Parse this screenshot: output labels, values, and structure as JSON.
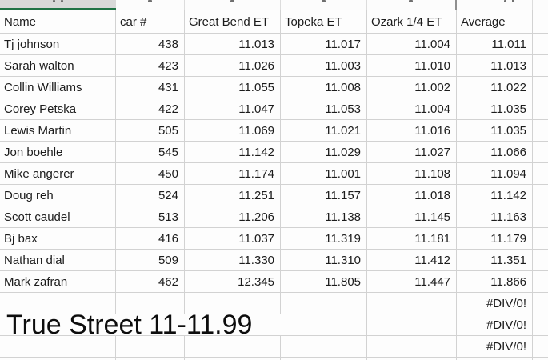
{
  "table": {
    "columns": [
      "Name",
      "car #",
      "Great Bend ET",
      "Topeka ET",
      "Ozark 1/4 ET",
      "Average"
    ],
    "rows": [
      {
        "name": "Tj johnson",
        "car": "438",
        "great_bend": "11.013",
        "topeka": "11.017",
        "ozark": "11.004",
        "average": "11.011"
      },
      {
        "name": "Sarah walton",
        "car": "423",
        "great_bend": "11.026",
        "topeka": "11.003",
        "ozark": "11.010",
        "average": "11.013"
      },
      {
        "name": "Collin Williams",
        "car": "431",
        "great_bend": "11.055",
        "topeka": "11.008",
        "ozark": "11.002",
        "average": "11.022"
      },
      {
        "name": "Corey Petska",
        "car": "422",
        "great_bend": "11.047",
        "topeka": "11.053",
        "ozark": "11.004",
        "average": "11.035"
      },
      {
        "name": "Lewis Martin",
        "car": "505",
        "great_bend": "11.069",
        "topeka": "11.021",
        "ozark": "11.016",
        "average": "11.035"
      },
      {
        "name": "Jon boehle",
        "car": "545",
        "great_bend": "11.142",
        "topeka": "11.029",
        "ozark": "11.027",
        "average": "11.066"
      },
      {
        "name": "Mike angerer",
        "car": "450",
        "great_bend": "11.174",
        "topeka": "11.001",
        "ozark": "11.108",
        "average": "11.094"
      },
      {
        "name": "Doug reh",
        "car": "524",
        "great_bend": "11.251",
        "topeka": "11.157",
        "ozark": "11.018",
        "average": "11.142"
      },
      {
        "name": "Scott caudel",
        "car": "513",
        "great_bend": "11.206",
        "topeka": "11.138",
        "ozark": "11.145",
        "average": "11.163"
      },
      {
        "name": "Bj bax",
        "car": "416",
        "great_bend": "11.037",
        "topeka": "11.319",
        "ozark": "11.181",
        "average": "11.179"
      },
      {
        "name": "Nathan dial",
        "car": "509",
        "great_bend": "11.330",
        "topeka": "11.310",
        "ozark": "11.412",
        "average": "11.351"
      },
      {
        "name": "Mark zafran",
        "car": "462",
        "great_bend": "12.345",
        "topeka": "11.805",
        "ozark": "11.447",
        "average": "11.866"
      }
    ]
  },
  "footer": {
    "title": "True Street 11-11.99",
    "error_values": [
      "#DIV/0!",
      "#DIV/0!",
      "#DIV/0!"
    ]
  },
  "colors": {
    "accent_green": "#217346",
    "gridline": "#d2d2d2",
    "active_cell_gray": "#d9d9d9"
  }
}
